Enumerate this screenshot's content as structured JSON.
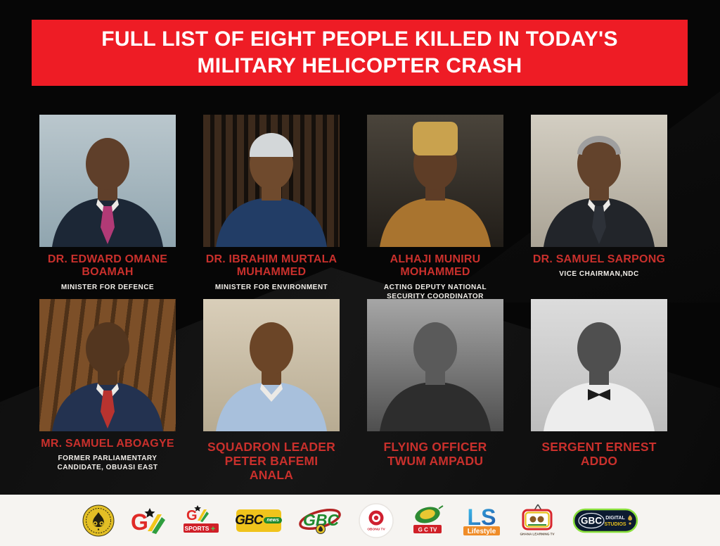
{
  "banner": {
    "line1": "FULL LIST OF EIGHT PEOPLE KILLED IN TODAY'S",
    "line2": "MILITARY HELICOPTER CRASH"
  },
  "colors": {
    "banner_red": "#ee1c25",
    "banner_text": "#ffffff",
    "name_red": "#c9302c",
    "subtitle_white": "#f2efea",
    "background_black": "#060606",
    "footer_bg": "#f6f4f1"
  },
  "people": [
    {
      "name": "DR. EDWARD OMANE BOAMAH",
      "title": "MINISTER FOR DEFENCE",
      "photo": {
        "bg1": "#bac7cd",
        "bg2": "#90a5af",
        "pattern": "flat",
        "skin": "#5f3f2a",
        "torso": "#1c2736",
        "accent": "#b13a76",
        "collar": true,
        "tie": true
      }
    },
    {
      "name": "DR. IBRAHIM MURTALA MUHAMMED",
      "title": "MINISTER FOR ENVIRONMENT",
      "photo": {
        "bg1": "#3c2a1c",
        "bg2": "#15100c",
        "pattern": "slats",
        "skin": "#6f4a2d",
        "torso": "#223d66",
        "hat_type": "kufi",
        "hat": "#d3d7d9"
      }
    },
    {
      "name": "ALHAJI MUNIRU MOHAMMED",
      "title": "ACTING DEPUTY NATIONAL SECURITY COORDINATOR",
      "photo": {
        "bg1": "#4a443b",
        "bg2": "#211d18",
        "pattern": "flat",
        "skin": "#5e3d26",
        "torso": "#a9742f",
        "hat_type": "tall",
        "hat": "#c9a24e"
      }
    },
    {
      "name": "DR. SAMUEL SARPONG",
      "title": "VICE CHAIRMAN,NDC",
      "photo": {
        "bg1": "#d3cec2",
        "bg2": "#aaa395",
        "pattern": "flat",
        "skin": "#63432c",
        "torso": "#22252a",
        "accent": "#2d3138",
        "collar": true,
        "tie": true,
        "hair": "#9f9f9f"
      }
    },
    {
      "name": "MR. SAMUEL ABOAGYE",
      "title": "FORMER PARLIAMENTARY CANDIDATE, OBUASI EAST",
      "photo": {
        "bg1": "#7c4f28",
        "bg2": "#4e3118",
        "pattern": "wood",
        "skin": "#53361f",
        "torso": "#233250",
        "accent": "#b8332f",
        "collar": true,
        "tie": true
      }
    },
    {
      "name": "SQUADRON LEADER PETER BAFEMI ANALA",
      "title": "",
      "photo": {
        "bg1": "#d9ceb9",
        "bg2": "#b7ab92",
        "pattern": "flat",
        "skin": "#6b4527",
        "torso": "#a8c0dc",
        "collar": true
      }
    },
    {
      "name": "FLYING OFFICER TWUM AMPADU",
      "title": "",
      "photo": {
        "bg1": "#a6a6a6",
        "bg2": "#4f4f4f",
        "pattern": "flat",
        "skin": "#5a5a5a",
        "torso": "#2d2d2d"
      }
    },
    {
      "name": "SERGENT ERNEST ADDO",
      "title": "",
      "photo": {
        "bg1": "#dcdcdc",
        "bg2": "#bdbdbd",
        "pattern": "flat",
        "skin": "#4f4f4f",
        "torso": "#ededed",
        "accent": "#1b1b1b",
        "bow": true
      }
    }
  ],
  "footer": {
    "logos": [
      {
        "id": "gbc-seal",
        "label": "GHANA BROADCASTING CORPORATION"
      },
      {
        "id": "gtv",
        "letter": "G"
      },
      {
        "id": "gtv-sports",
        "letter": "G",
        "band": "SPORTS",
        "plus": "+"
      },
      {
        "id": "gbc-news",
        "label": "GBC",
        "tag": "news"
      },
      {
        "id": "gbc",
        "label": "GBC"
      },
      {
        "id": "obonu-tv",
        "label": "OBONU TV"
      },
      {
        "id": "gctv",
        "label": "G C TV"
      },
      {
        "id": "ls-lifestyle",
        "label": "LS",
        "band": "Lifestyle"
      },
      {
        "id": "ghana-learning-tv",
        "label": "GHANA LEARNING TV"
      },
      {
        "id": "gbc-digital",
        "label": "GBC",
        "line1": "DIGITAL",
        "line2": "STUDIOS"
      }
    ]
  }
}
